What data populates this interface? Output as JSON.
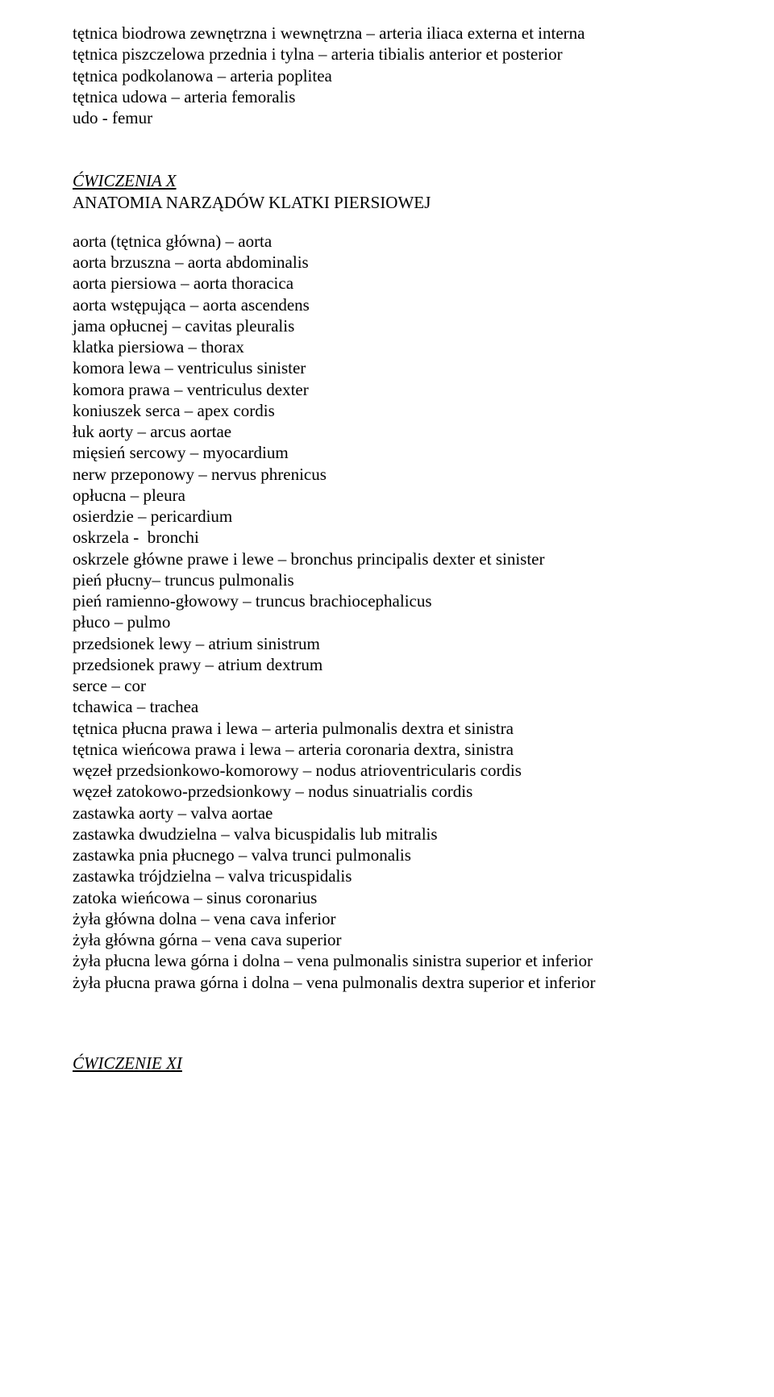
{
  "colors": {
    "text": "#000000",
    "background": "#ffffff"
  },
  "typography": {
    "font_family": "Times New Roman",
    "body_fontsize_pt": 16,
    "heading_style": "italic underline"
  },
  "intro_lines": [
    "tętnica biodrowa zewnętrzna i wewnętrzna – arteria iliaca externa et interna",
    "tętnica piszczelowa przednia i tylna – arteria tibialis anterior et posterior",
    "tętnica podkolanowa – arteria poplitea",
    "tętnica udowa – arteria femoralis",
    "udo - femur"
  ],
  "section_x": {
    "heading": "ĆWICZENIA X",
    "subtitle": "ANATOMIA NARZĄDÓW KLATKI PIERSIOWEJ",
    "lines": [
      "aorta (tętnica główna) – aorta",
      "aorta brzuszna – aorta abdominalis",
      "aorta piersiowa – aorta thoracica",
      "aorta wstępująca – aorta ascendens",
      "jama opłucnej – cavitas pleuralis",
      "klatka piersiowa – thorax",
      "komora lewa – ventriculus sinister",
      "komora prawa – ventriculus dexter",
      "koniuszek serca – apex cordis",
      "łuk aorty – arcus aortae",
      "mięsień sercowy – myocardium",
      "nerw przeponowy – nervus phrenicus",
      "opłucna – pleura",
      "osierdzie – pericardium",
      "oskrzela -  bronchi",
      "oskrzele główne prawe i lewe – bronchus principalis dexter et sinister",
      "pień płucny– truncus pulmonalis",
      "pień ramienno-głowowy – truncus brachiocephalicus",
      "płuco – pulmo",
      "przedsionek lewy – atrium sinistrum",
      "przedsionek prawy – atrium dextrum",
      "serce – cor",
      "tchawica – trachea",
      "tętnica płucna prawa i lewa – arteria pulmonalis dextra et sinistra",
      "tętnica wieńcowa prawa i lewa – arteria coronaria dextra, sinistra",
      "węzeł przedsionkowo-komorowy – nodus atrioventricularis cordis",
      "węzeł zatokowo-przedsionkowy – nodus sinuatrialis cordis",
      "zastawka aorty – valva aortae",
      "zastawka dwudzielna – valva bicuspidalis lub mitralis",
      "zastawka pnia płucnego – valva trunci pulmonalis",
      "zastawka trójdzielna – valva tricuspidalis",
      "zatoka wieńcowa – sinus coronarius",
      "żyła główna dolna – vena cava inferior",
      "żyła główna górna – vena cava superior",
      "żyła płucna lewa górna i dolna – vena pulmonalis sinistra superior et inferior",
      "żyła płucna prawa górna i dolna – vena pulmonalis dextra superior et inferior"
    ]
  },
  "section_xi": {
    "heading": "ĆWICZENIE XI"
  }
}
